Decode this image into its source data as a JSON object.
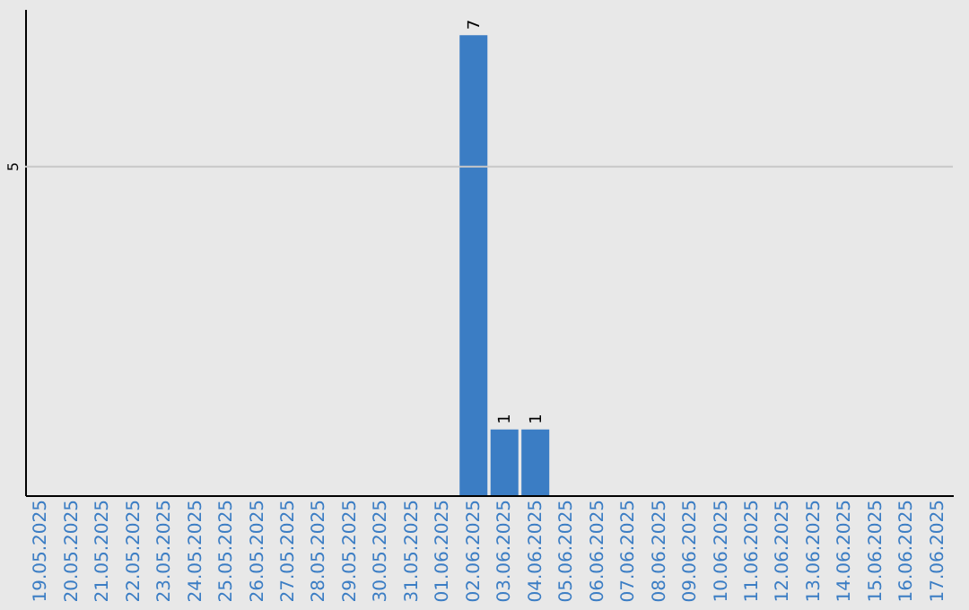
{
  "chart_data": {
    "type": "bar",
    "categories": [
      "19.05.2025",
      "20.05.2025",
      "21.05.2025",
      "22.05.2025",
      "23.05.2025",
      "24.05.2025",
      "25.05.2025",
      "26.05.2025",
      "27.05.2025",
      "28.05.2025",
      "29.05.2025",
      "30.05.2025",
      "31.05.2025",
      "01.06.2025",
      "02.06.2025",
      "03.06.2025",
      "04.06.2025",
      "05.06.2025",
      "06.06.2025",
      "07.06.2025",
      "08.06.2025",
      "09.06.2025",
      "10.06.2025",
      "11.06.2025",
      "12.06.2025",
      "13.06.2025",
      "14.06.2025",
      "15.06.2025",
      "16.06.2025",
      "17.06.2025"
    ],
    "values": [
      null,
      null,
      null,
      null,
      null,
      null,
      null,
      null,
      null,
      null,
      null,
      null,
      null,
      null,
      7,
      1,
      1,
      null,
      null,
      null,
      null,
      null,
      null,
      null,
      null,
      null,
      null,
      null,
      null,
      null
    ],
    "data_labels": true,
    "color": "#3b7dc4",
    "ylim": [
      0,
      7.4
    ],
    "ref_lines": [
      {
        "axis": "y",
        "value": 5,
        "label": "5",
        "color": "#c8c8c8"
      }
    ]
  }
}
